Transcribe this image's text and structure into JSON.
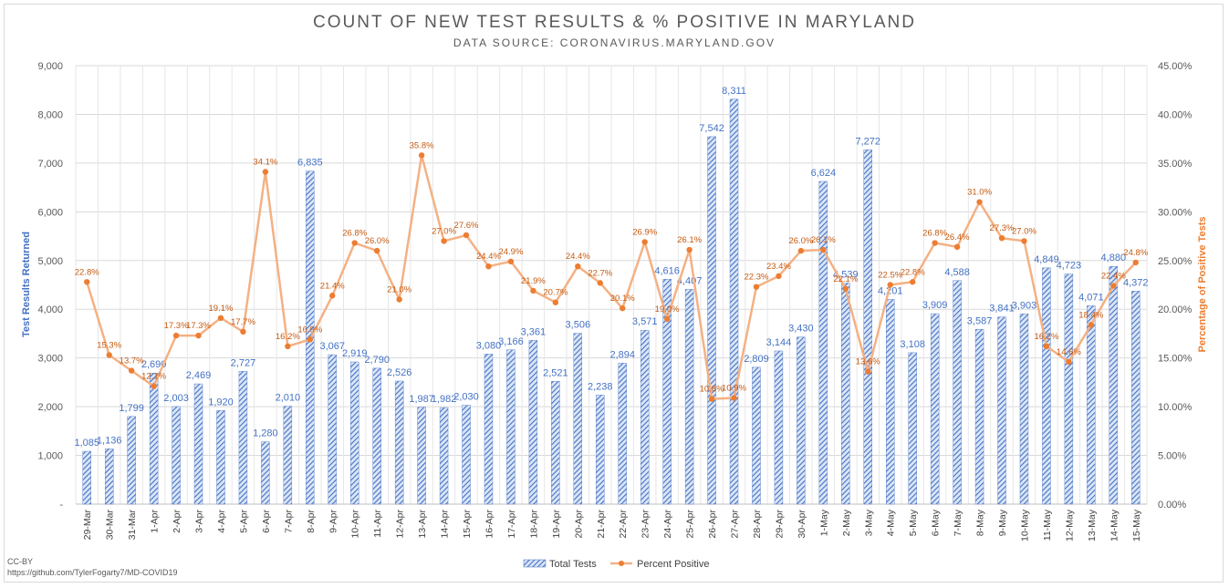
{
  "header": {
    "title": "COUNT OF NEW TEST RESULTS & % POSITIVE IN MARYLAND",
    "subtitle": "DATA SOURCE: CORONAVIRUS.MARYLAND.GOV"
  },
  "footer": {
    "license": "CC-BY",
    "source_url": "https://github.com/TylerFogarty7/MD-COVID19"
  },
  "colors": {
    "bars": "#4472c4",
    "line": "#f4b183",
    "points": "#ed7d31",
    "left_axis": "#4472c4",
    "right_axis": "#ed7d31"
  },
  "chart_data": {
    "type": "bar",
    "title": "COUNT OF NEW TEST RESULTS & % POSITIVE IN MARYLAND",
    "subtitle": "DATA SOURCE: CORONAVIRUS.MARYLAND.GOV",
    "ylabel": "Test Results Returned",
    "y2label": "Percentage of Positive Tests",
    "ylim": [
      0,
      9000
    ],
    "y2lim": [
      0,
      45
    ],
    "yticks": [
      "-",
      "1,000",
      "2,000",
      "3,000",
      "4,000",
      "5,000",
      "6,000",
      "7,000",
      "8,000",
      "9,000"
    ],
    "y2ticks": [
      "0.00%",
      "5.00%",
      "10.00%",
      "15.00%",
      "20.00%",
      "25.00%",
      "30.00%",
      "35.00%",
      "40.00%",
      "45.00%"
    ],
    "grid": true,
    "legend_position": "bottom",
    "categories": [
      "29-Mar",
      "30-Mar",
      "31-Mar",
      "1-Apr",
      "2-Apr",
      "3-Apr",
      "4-Apr",
      "5-Apr",
      "6-Apr",
      "7-Apr",
      "8-Apr",
      "9-Apr",
      "10-Apr",
      "11-Apr",
      "12-Apr",
      "13-Apr",
      "14-Apr",
      "15-Apr",
      "16-Apr",
      "17-Apr",
      "18-Apr",
      "19-Apr",
      "20-Apr",
      "21-Apr",
      "22-Apr",
      "23-Apr",
      "24-Apr",
      "25-Apr",
      "26-Apr",
      "27-Apr",
      "28-Apr",
      "29-Apr",
      "30-Apr",
      "1-May",
      "2-May",
      "3-May",
      "4-May",
      "5-May",
      "6-May",
      "7-May",
      "8-May",
      "9-May",
      "10-May",
      "11-May",
      "12-May",
      "13-May",
      "14-May",
      "15-May"
    ],
    "series": [
      {
        "name": "Total Tests",
        "type": "bar",
        "axis": "left",
        "values": [
          1085,
          1136,
          1799,
          2690,
          2003,
          2469,
          1920,
          2727,
          1280,
          2010,
          6835,
          3067,
          2919,
          2790,
          2526,
          1987,
          1982,
          2030,
          3080,
          3166,
          3361,
          2521,
          3506,
          2238,
          2894,
          3571,
          4616,
          4407,
          7542,
          8311,
          2809,
          3144,
          3430,
          6624,
          4539,
          7272,
          4201,
          3108,
          3909,
          4588,
          3587,
          3841,
          3903,
          4849,
          4723,
          4071,
          4880,
          4372
        ],
        "labels": [
          "1,085",
          "1,136",
          "1,799",
          "2,690",
          "2,003",
          "2,469",
          "1,920",
          "2,727",
          "1,280",
          "2,010",
          "6,835",
          "3,067",
          "2,919",
          "2,790",
          "2,526",
          "1,987",
          "1,982",
          "2,030",
          "3,080",
          "3,166",
          "3,361",
          "2,521",
          "3,506",
          "2,238",
          "2,894",
          "3,571",
          "4,616",
          "4,407",
          "7,542",
          "8,311",
          "2,809",
          "3,144",
          "3,430",
          "6,624",
          "4,539",
          "7,272",
          "4,201",
          "3,108",
          "3,909",
          "4,588",
          "3,587",
          "3,841",
          "3,903",
          "4,849",
          "4,723",
          "4,071",
          "4,880",
          "4,372"
        ]
      },
      {
        "name": "Percent Positive",
        "type": "line",
        "axis": "right",
        "values": [
          22.8,
          15.3,
          13.7,
          12.1,
          17.3,
          17.3,
          19.1,
          17.7,
          34.1,
          16.2,
          16.9,
          21.4,
          26.8,
          26.0,
          21.0,
          35.8,
          27.0,
          27.6,
          24.4,
          24.9,
          21.9,
          20.7,
          24.4,
          22.7,
          20.1,
          26.9,
          19.0,
          26.1,
          10.8,
          10.9,
          22.3,
          23.4,
          26.0,
          26.1,
          22.1,
          13.6,
          22.5,
          22.8,
          26.8,
          26.4,
          31.0,
          27.3,
          27.0,
          16.2,
          14.6,
          18.4,
          22.4,
          24.8
        ],
        "labels": [
          "22.8%",
          "15.3%",
          "13.7%",
          "12.1%",
          "17.3%",
          "17.3%",
          "19.1%",
          "17.7%",
          "34.1%",
          "16.2%",
          "16.9%",
          "21.4%",
          "26.8%",
          "26.0%",
          "21.0%",
          "35.8%",
          "27.0%",
          "27.6%",
          "24.4%",
          "24.9%",
          "21.9%",
          "20.7%",
          "24.4%",
          "22.7%",
          "20.1%",
          "26.9%",
          "19.0%",
          "26.1%",
          "10.8%",
          "10.9%",
          "22.3%",
          "23.4%",
          "26.0%",
          "26.1%",
          "22.1%",
          "13.6%",
          "22.5%",
          "22.8%",
          "26.8%",
          "26.4%",
          "31.0%",
          "27.3%",
          "27.0%",
          "16.2%",
          "14.6%",
          "18.4%",
          "22.4%",
          "24.8%"
        ]
      }
    ]
  }
}
